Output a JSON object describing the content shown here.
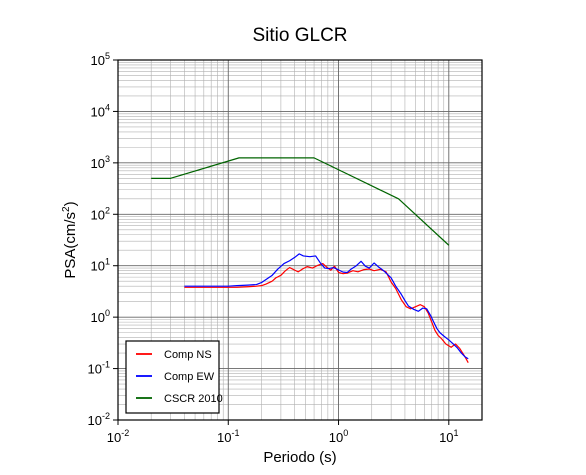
{
  "chart_data": {
    "type": "line",
    "title": "Sitio GLCR",
    "xlabel": "Periodo (s)",
    "ylabel_main": "PSA(cm/s",
    "ylabel_sup": "2",
    "ylabel_close": ")",
    "xscale": "log",
    "yscale": "log",
    "xlim": [
      0.01,
      20
    ],
    "ylim": [
      0.01,
      100000
    ],
    "grid": true,
    "legend_position": "bottom-left",
    "x_ticks": [
      {
        "value": 0.01,
        "base": "10",
        "exp": "-2"
      },
      {
        "value": 0.1,
        "base": "10",
        "exp": "-1"
      },
      {
        "value": 1,
        "base": "10",
        "exp": "0"
      },
      {
        "value": 10,
        "base": "10",
        "exp": "1"
      }
    ],
    "y_ticks": [
      {
        "value": 0.01,
        "base": "10",
        "exp": "-2"
      },
      {
        "value": 0.1,
        "base": "10",
        "exp": "-1"
      },
      {
        "value": 1,
        "base": "10",
        "exp": "0"
      },
      {
        "value": 10,
        "base": "10",
        "exp": "1"
      },
      {
        "value": 100,
        "base": "10",
        "exp": "2"
      },
      {
        "value": 1000,
        "base": "10",
        "exp": "3"
      },
      {
        "value": 10000,
        "base": "10",
        "exp": "4"
      },
      {
        "value": 100000,
        "base": "10",
        "exp": "5"
      }
    ],
    "series": [
      {
        "name": "Comp NS",
        "color": "#ff0000",
        "points": [
          [
            0.04,
            3.8
          ],
          [
            0.05,
            3.8
          ],
          [
            0.06,
            3.8
          ],
          [
            0.08,
            3.8
          ],
          [
            0.1,
            3.8
          ],
          [
            0.12,
            3.8
          ],
          [
            0.15,
            3.9
          ],
          [
            0.18,
            4.0
          ],
          [
            0.2,
            4.1
          ],
          [
            0.22,
            4.4
          ],
          [
            0.25,
            5.0
          ],
          [
            0.27,
            5.8
          ],
          [
            0.3,
            6.5
          ],
          [
            0.33,
            8.0
          ],
          [
            0.36,
            9.2
          ],
          [
            0.4,
            8.2
          ],
          [
            0.43,
            7.6
          ],
          [
            0.47,
            8.6
          ],
          [
            0.52,
            9.6
          ],
          [
            0.58,
            9.0
          ],
          [
            0.65,
            10.2
          ],
          [
            0.72,
            11.0
          ],
          [
            0.78,
            9.4
          ],
          [
            0.85,
            8.2
          ],
          [
            0.92,
            9.8
          ],
          [
            1.0,
            7.4
          ],
          [
            1.1,
            7.0
          ],
          [
            1.2,
            7.2
          ],
          [
            1.35,
            8.0
          ],
          [
            1.5,
            7.6
          ],
          [
            1.7,
            8.4
          ],
          [
            1.9,
            8.6
          ],
          [
            2.1,
            8.0
          ],
          [
            2.4,
            8.5
          ],
          [
            2.7,
            7.6
          ],
          [
            3.0,
            4.8
          ],
          [
            3.3,
            3.6
          ],
          [
            3.7,
            2.2
          ],
          [
            4.1,
            1.6
          ],
          [
            4.5,
            1.45
          ],
          [
            5.0,
            1.6
          ],
          [
            5.5,
            1.75
          ],
          [
            6.0,
            1.6
          ],
          [
            6.5,
            1.2
          ],
          [
            7.0,
            0.8
          ],
          [
            7.5,
            0.55
          ],
          [
            8.0,
            0.44
          ],
          [
            8.6,
            0.38
          ],
          [
            9.4,
            0.3
          ],
          [
            10.5,
            0.26
          ],
          [
            11.5,
            0.3
          ],
          [
            12.5,
            0.25
          ],
          [
            14.0,
            0.17
          ],
          [
            15.0,
            0.13
          ]
        ]
      },
      {
        "name": "Comp EW",
        "color": "#0000ff",
        "points": [
          [
            0.04,
            4.0
          ],
          [
            0.05,
            4.0
          ],
          [
            0.06,
            4.0
          ],
          [
            0.08,
            4.0
          ],
          [
            0.1,
            4.0
          ],
          [
            0.12,
            4.1
          ],
          [
            0.15,
            4.2
          ],
          [
            0.18,
            4.3
          ],
          [
            0.2,
            4.7
          ],
          [
            0.22,
            5.4
          ],
          [
            0.25,
            6.5
          ],
          [
            0.28,
            8.5
          ],
          [
            0.32,
            11.0
          ],
          [
            0.36,
            12.5
          ],
          [
            0.4,
            14.5
          ],
          [
            0.44,
            17.0
          ],
          [
            0.48,
            15.5
          ],
          [
            0.55,
            15.0
          ],
          [
            0.62,
            15.5
          ],
          [
            0.68,
            11.5
          ],
          [
            0.75,
            9.0
          ],
          [
            0.82,
            8.8
          ],
          [
            0.9,
            9.2
          ],
          [
            1.0,
            8.3
          ],
          [
            1.1,
            7.5
          ],
          [
            1.2,
            7.4
          ],
          [
            1.3,
            8.6
          ],
          [
            1.45,
            10.0
          ],
          [
            1.6,
            12.2
          ],
          [
            1.75,
            9.8
          ],
          [
            1.9,
            9.0
          ],
          [
            2.1,
            11.3
          ],
          [
            2.3,
            9.5
          ],
          [
            2.6,
            7.8
          ],
          [
            3.0,
            5.8
          ],
          [
            3.3,
            4.0
          ],
          [
            3.7,
            2.8
          ],
          [
            4.0,
            2.1
          ],
          [
            4.3,
            1.65
          ],
          [
            4.8,
            1.42
          ],
          [
            5.3,
            1.3
          ],
          [
            5.8,
            1.5
          ],
          [
            6.3,
            1.45
          ],
          [
            6.8,
            1.1
          ],
          [
            7.3,
            0.8
          ],
          [
            7.8,
            0.6
          ],
          [
            8.3,
            0.5
          ],
          [
            9.0,
            0.43
          ],
          [
            10.0,
            0.36
          ],
          [
            11.0,
            0.3
          ],
          [
            12.0,
            0.25
          ],
          [
            13.0,
            0.2
          ],
          [
            14.0,
            0.17
          ],
          [
            15.0,
            0.155
          ]
        ]
      },
      {
        "name": "CSCR 2010",
        "color": "#006400",
        "points": [
          [
            0.02,
            500
          ],
          [
            0.03,
            500
          ],
          [
            0.125,
            1250
          ],
          [
            0.6,
            1250
          ],
          [
            3.5,
            200
          ],
          [
            10.0,
            25
          ]
        ]
      }
    ]
  }
}
